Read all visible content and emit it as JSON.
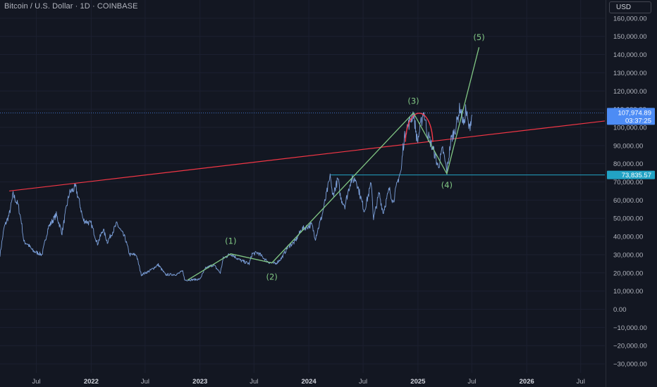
{
  "header": {
    "title": "Bitcoin / U.S. Dollar · 1D · COINBASE",
    "currency": "USD"
  },
  "colors": {
    "background": "#131722",
    "price_line": "#7b9fd9",
    "wave_line": "#81c784",
    "trend_line": "#f23645",
    "level_line": "#22a3c5",
    "price_badge": "#4d8cf5",
    "level_badge": "#22a3c5"
  },
  "chart_data": {
    "type": "line",
    "ylim": [
      -35000,
      170000
    ],
    "y_ticks": [
      {
        "value": 160000,
        "label": "160,000.00"
      },
      {
        "value": 150000,
        "label": "150,000.00"
      },
      {
        "value": 140000,
        "label": "140,000.00"
      },
      {
        "value": 130000,
        "label": "130,000.00"
      },
      {
        "value": 120000,
        "label": "120,000.00"
      },
      {
        "value": 110000,
        "label": "110,000.00"
      },
      {
        "value": 100000,
        "label": "100,000.00"
      },
      {
        "value": 90000,
        "label": "90,000.00"
      },
      {
        "value": 80000,
        "label": "80,000.00"
      },
      {
        "value": 70000,
        "label": "70,000.00"
      },
      {
        "value": 60000,
        "label": "60,000.00"
      },
      {
        "value": 50000,
        "label": "50,000.00"
      },
      {
        "value": 40000,
        "label": "40,000.00"
      },
      {
        "value": 30000,
        "label": "30,000.00"
      },
      {
        "value": 20000,
        "label": "20,000.00"
      },
      {
        "value": 10000,
        "label": "10,000.00"
      },
      {
        "value": 0,
        "label": "0.00"
      },
      {
        "value": -10000,
        "label": "−10,000.00"
      },
      {
        "value": -20000,
        "label": "−20,000.00"
      },
      {
        "value": -30000,
        "label": "−30,000.00"
      }
    ],
    "x_ticks": [
      {
        "date": "2021-07-01",
        "label": "Jul",
        "year": false
      },
      {
        "date": "2022-01-01",
        "label": "2022",
        "year": true
      },
      {
        "date": "2022-07-01",
        "label": "Jul",
        "year": false
      },
      {
        "date": "2023-01-01",
        "label": "2023",
        "year": true
      },
      {
        "date": "2023-07-01",
        "label": "Jul",
        "year": false
      },
      {
        "date": "2024-01-01",
        "label": "2024",
        "year": true
      },
      {
        "date": "2024-07-01",
        "label": "Jul",
        "year": false
      },
      {
        "date": "2025-01-01",
        "label": "2025",
        "year": true
      },
      {
        "date": "2025-07-01",
        "label": "Jul",
        "year": false
      },
      {
        "date": "2026-01-01",
        "label": "2026",
        "year": true
      },
      {
        "date": "2026-07-01",
        "label": "Jul",
        "year": false
      }
    ],
    "xlim": [
      "2021-03-01",
      "2026-09-20"
    ],
    "series": [
      {
        "type": "line",
        "points": [
          [
            "2021-03-01",
            30000
          ],
          [
            "2021-03-15",
            45000
          ],
          [
            "2021-04-01",
            52000
          ],
          [
            "2021-04-14",
            63000
          ],
          [
            "2021-05-01",
            57000
          ],
          [
            "2021-05-12",
            48000
          ],
          [
            "2021-05-20",
            37000
          ],
          [
            "2021-06-01",
            36000
          ],
          [
            "2021-06-20",
            32000
          ],
          [
            "2021-07-20",
            30000
          ],
          [
            "2021-08-10",
            45000
          ],
          [
            "2021-09-06",
            52000
          ],
          [
            "2021-09-25",
            42000
          ],
          [
            "2021-10-10",
            56000
          ],
          [
            "2021-10-20",
            64000
          ],
          [
            "2021-11-10",
            67000
          ],
          [
            "2021-11-25",
            57000
          ],
          [
            "2021-12-05",
            49000
          ],
          [
            "2022-01-01",
            47000
          ],
          [
            "2022-01-22",
            36000
          ],
          [
            "2022-02-10",
            44000
          ],
          [
            "2022-02-24",
            37000
          ],
          [
            "2022-03-28",
            47000
          ],
          [
            "2022-04-25",
            39000
          ],
          [
            "2022-05-10",
            30000
          ],
          [
            "2022-06-01",
            30000
          ],
          [
            "2022-06-18",
            19000
          ],
          [
            "2022-07-15",
            21000
          ],
          [
            "2022-08-14",
            24500
          ],
          [
            "2022-09-07",
            19000
          ],
          [
            "2022-10-15",
            19200
          ],
          [
            "2022-11-05",
            21000
          ],
          [
            "2022-11-10",
            16000
          ],
          [
            "2022-12-31",
            16500
          ],
          [
            "2023-01-20",
            22500
          ],
          [
            "2023-02-15",
            24500
          ],
          [
            "2023-03-10",
            20000
          ],
          [
            "2023-03-20",
            28000
          ],
          [
            "2023-04-14",
            30500
          ],
          [
            "2023-05-15",
            27000
          ],
          [
            "2023-06-15",
            25000
          ],
          [
            "2023-06-25",
            30500
          ],
          [
            "2023-07-15",
            31000
          ],
          [
            "2023-08-17",
            26000
          ],
          [
            "2023-09-11",
            25000
          ],
          [
            "2023-10-01",
            28000
          ],
          [
            "2023-10-24",
            34500
          ],
          [
            "2023-11-15",
            37000
          ],
          [
            "2023-12-08",
            44000
          ],
          [
            "2024-01-11",
            46500
          ],
          [
            "2024-01-23",
            39000
          ],
          [
            "2024-02-15",
            52000
          ],
          [
            "2024-03-05",
            67000
          ],
          [
            "2024-03-14",
            73500
          ],
          [
            "2024-03-20",
            62000
          ],
          [
            "2024-04-08",
            71500
          ],
          [
            "2024-04-17",
            61000
          ],
          [
            "2024-05-01",
            57000
          ],
          [
            "2024-05-21",
            71000
          ],
          [
            "2024-06-07",
            71500
          ],
          [
            "2024-07-05",
            54000
          ],
          [
            "2024-07-29",
            69500
          ],
          [
            "2024-08-05",
            49500
          ],
          [
            "2024-08-24",
            64000
          ],
          [
            "2024-09-06",
            53000
          ],
          [
            "2024-09-27",
            66000
          ],
          [
            "2024-10-10",
            59000
          ],
          [
            "2024-10-29",
            73000
          ],
          [
            "2024-11-06",
            76000
          ],
          [
            "2024-11-12",
            89000
          ],
          [
            "2024-11-22",
            99000
          ],
          [
            "2024-12-05",
            103000
          ],
          [
            "2024-12-17",
            108000
          ],
          [
            "2024-12-30",
            92000
          ],
          [
            "2025-01-20",
            109000
          ],
          [
            "2025-02-03",
            96000
          ],
          [
            "2025-02-25",
            86000
          ],
          [
            "2025-03-10",
            78000
          ],
          [
            "2025-03-25",
            88000
          ],
          [
            "2025-04-08",
            76000
          ],
          [
            "2025-04-22",
            93000
          ],
          [
            "2025-05-08",
            100000
          ],
          [
            "2025-05-22",
            111000
          ],
          [
            "2025-06-05",
            101000
          ],
          [
            "2025-06-10",
            110000
          ],
          [
            "2025-06-22",
            99000
          ],
          [
            "2025-07-01",
            107000
          ]
        ]
      }
    ],
    "waves": [
      {
        "label": "(1)",
        "date": "2023-04-14",
        "value": 30500
      },
      {
        "label": "(2)",
        "date": "2023-08-30",
        "value": 25500
      },
      {
        "label": "(3)",
        "date": "2024-12-17",
        "value": 108000
      },
      {
        "label": "(4)",
        "date": "2025-04-08",
        "value": 74500
      },
      {
        "label": "(5)",
        "date": "2025-07-25",
        "value": 144000
      }
    ],
    "wave_line": [
      [
        "2022-11-20",
        16000
      ],
      [
        "2023-04-14",
        30500
      ],
      [
        "2023-08-30",
        25500
      ],
      [
        "2024-12-17",
        108000
      ],
      [
        "2025-04-08",
        74500
      ],
      [
        "2025-07-25",
        144000
      ]
    ],
    "trend_line": [
      [
        "2021-04-01",
        65000
      ],
      [
        "2026-09-20",
        103500
      ]
    ],
    "level_line": {
      "from": "2024-03-14",
      "value": 73835.57
    },
    "current_price": {
      "value": 107974.89,
      "label": "107,974.89",
      "timer": "03:37:25"
    },
    "level_badge": {
      "value": 73835.57,
      "label": "73,835.57"
    }
  }
}
